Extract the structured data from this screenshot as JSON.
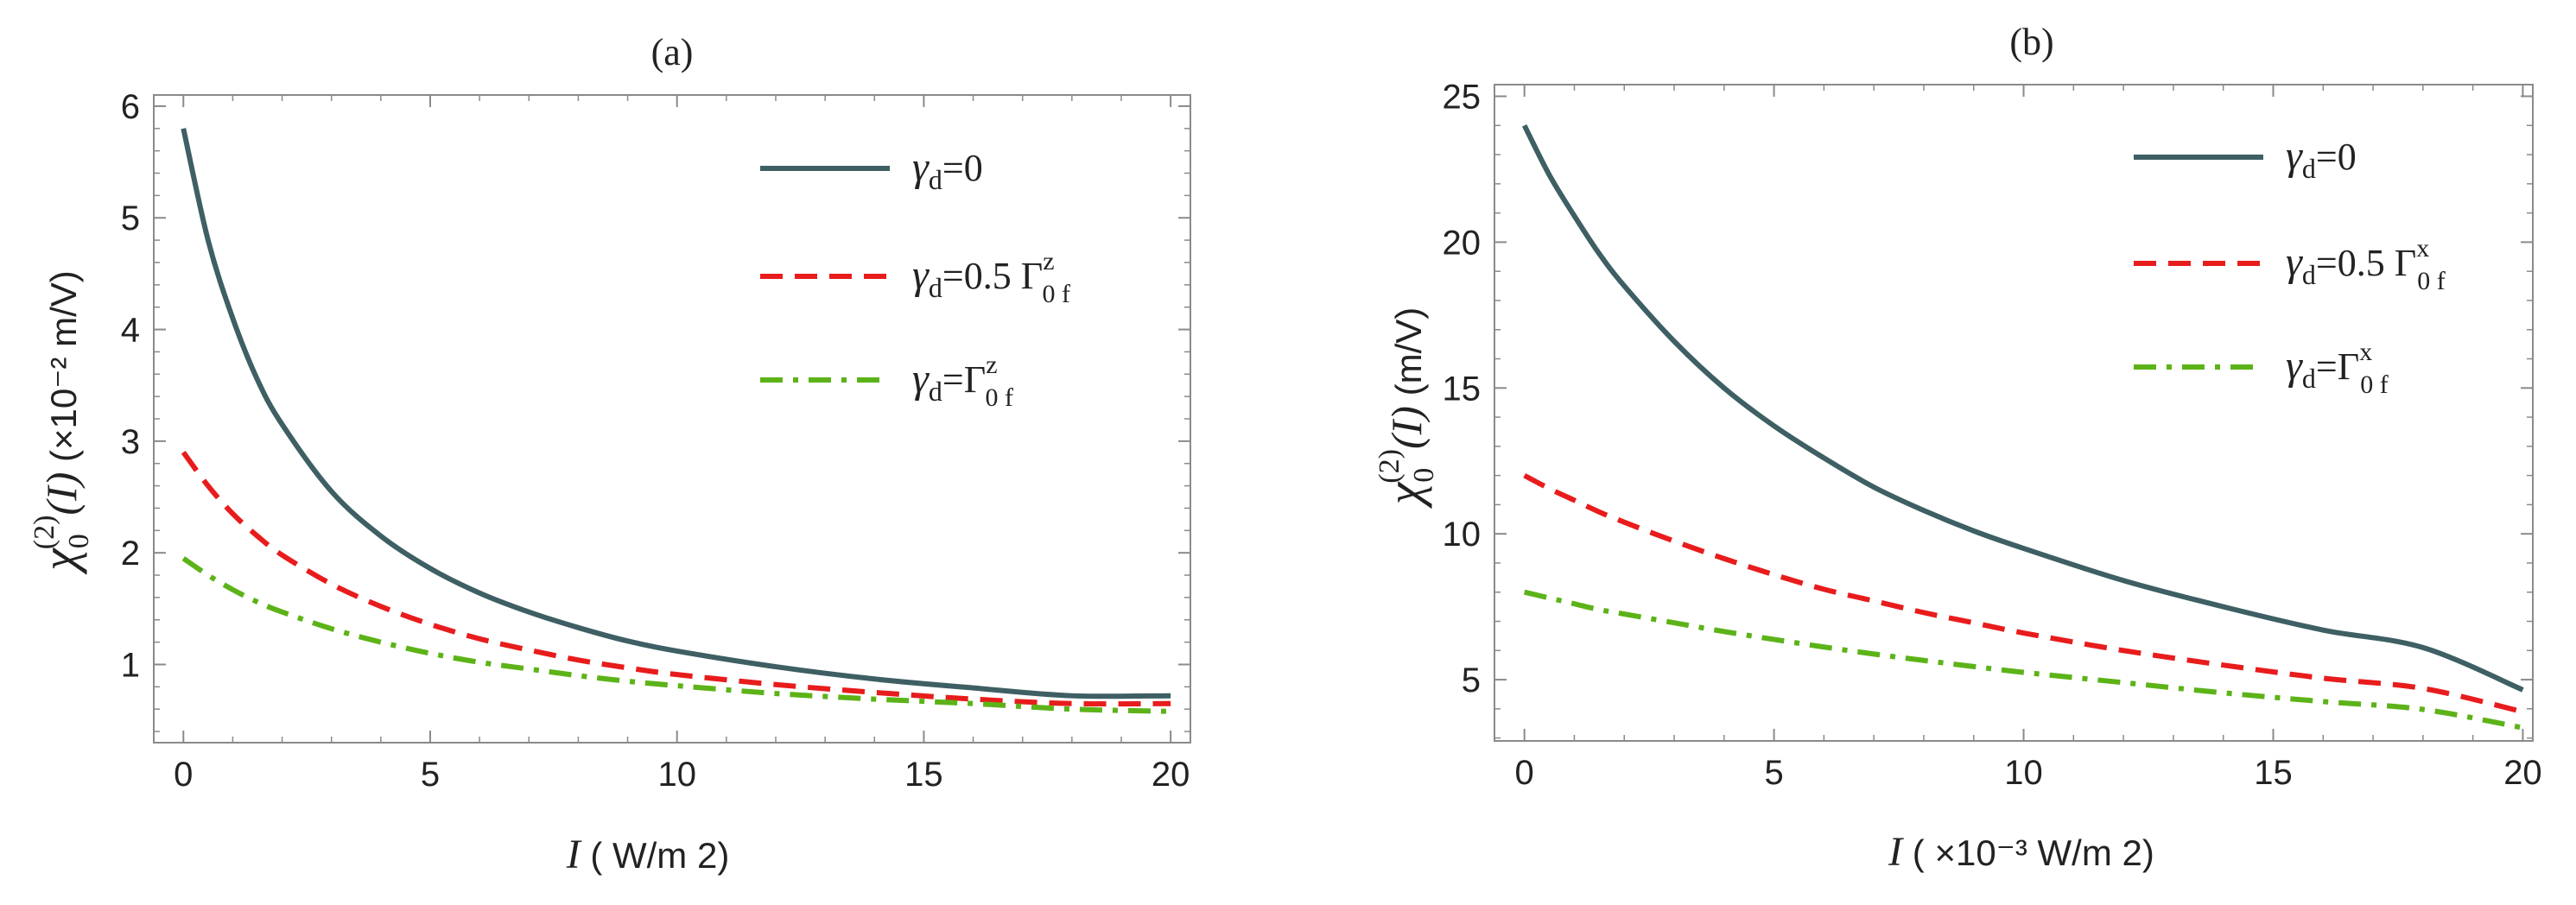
{
  "chart_data": [
    {
      "type": "line",
      "panel_label": "(a)",
      "xlabel": {
        "symbol": "I",
        "unit": "( W/m 2)"
      },
      "ylabel": {
        "symbol": "χ",
        "sub": "0",
        "sup": "(2)",
        "arg": "(I)",
        "unit": "(×10⁻² m/V)"
      },
      "xlim": [
        -0.6,
        20.4
      ],
      "ylim": [
        0.3,
        6.1
      ],
      "x_ticks": [
        0,
        5,
        10,
        15,
        20
      ],
      "x_tick_labels": [
        "0",
        "5",
        "10",
        "15",
        "20"
      ],
      "y_ticks": [
        1,
        2,
        3,
        4,
        5,
        6
      ],
      "y_tick_labels": [
        "1",
        "2",
        "3",
        "4",
        "5",
        "6"
      ],
      "legend_position": "top-right",
      "x": [
        0,
        0.5,
        1,
        1.5,
        2,
        3,
        4,
        5,
        6,
        7,
        8,
        9,
        10,
        12,
        14,
        16,
        18,
        20
      ],
      "series": [
        {
          "name": "γd=0",
          "legend_main": "γ",
          "legend_sub": "d",
          "legend_tail": "=0",
          "color": "#3e5f63",
          "style": "solid",
          "values": [
            5.8,
            4.8,
            4.1,
            3.55,
            3.15,
            2.55,
            2.15,
            1.86,
            1.64,
            1.47,
            1.33,
            1.21,
            1.12,
            0.98,
            0.87,
            0.79,
            0.72,
            0.72
          ]
        },
        {
          "name": "γd=0.5 Γz0f",
          "legend_main": "γ",
          "legend_sub": "d",
          "legend_tail": "=0.5 Γ",
          "legend_sup2": "z",
          "legend_sub2": "0 f",
          "color": "#e81c1c",
          "style": "dashed",
          "values": [
            2.9,
            2.6,
            2.35,
            2.15,
            1.98,
            1.72,
            1.52,
            1.36,
            1.23,
            1.13,
            1.04,
            0.97,
            0.91,
            0.82,
            0.75,
            0.69,
            0.65,
            0.65
          ]
        },
        {
          "name": "γd=Γz0f",
          "legend_main": "γ",
          "legend_sub": "d",
          "legend_tail": "=Γ",
          "legend_sup2": "z",
          "legend_sub2": "0 f",
          "color": "#5cb318",
          "style": "dashdot",
          "values": [
            1.95,
            1.8,
            1.67,
            1.56,
            1.47,
            1.32,
            1.2,
            1.1,
            1.02,
            0.96,
            0.9,
            0.85,
            0.81,
            0.74,
            0.69,
            0.65,
            0.6,
            0.58
          ]
        }
      ]
    },
    {
      "type": "line",
      "panel_label": "(b)",
      "xlabel": {
        "symbol": "I",
        "unit": "( ×10⁻³ W/m 2)"
      },
      "ylabel": {
        "symbol": "χ",
        "sub": "0",
        "sup": "(2)",
        "arg": "(I)",
        "unit": "(m/V)"
      },
      "xlim": [
        -0.6,
        20.2
      ],
      "ylim": [
        2.9,
        25.4
      ],
      "x_ticks": [
        0,
        5,
        10,
        15,
        20
      ],
      "x_tick_labels": [
        "0",
        "5",
        "10",
        "15",
        "20"
      ],
      "y_ticks": [
        5,
        10,
        15,
        20,
        25
      ],
      "y_tick_labels": [
        "5",
        "10",
        "15",
        "20",
        "25"
      ],
      "legend_position": "top-right",
      "x": [
        0,
        0.5,
        1,
        1.5,
        2,
        3,
        4,
        5,
        6,
        7,
        8,
        9,
        10,
        12,
        14,
        16,
        18,
        20
      ],
      "series": [
        {
          "name": "γd=0",
          "legend_main": "γ",
          "legend_sub": "d",
          "legend_tail": "=0",
          "color": "#3e5f63",
          "style": "solid",
          "values": [
            24.0,
            22.3,
            20.9,
            19.6,
            18.5,
            16.6,
            15.0,
            13.7,
            12.6,
            11.6,
            10.8,
            10.1,
            9.5,
            8.4,
            7.5,
            6.7,
            6.1,
            4.65
          ]
        },
        {
          "name": "γd=0.5 Γx0f",
          "legend_main": "γ",
          "legend_sub": "d",
          "legend_tail": "=0.5 Γ",
          "legend_sup2": "x",
          "legend_sub2": "0 f",
          "color": "#e81c1c",
          "style": "dashed",
          "values": [
            12.0,
            11.55,
            11.15,
            10.75,
            10.4,
            9.75,
            9.15,
            8.6,
            8.1,
            7.7,
            7.3,
            6.95,
            6.6,
            6.0,
            5.5,
            5.05,
            4.7,
            3.9
          ]
        },
        {
          "name": "γd=Γx0f",
          "legend_main": "γ",
          "legend_sub": "d",
          "legend_tail": "=Γ",
          "legend_sup2": "x",
          "legend_sub2": "0 f",
          "color": "#5cb318",
          "style": "dashdot",
          "values": [
            8.0,
            7.8,
            7.6,
            7.4,
            7.25,
            6.95,
            6.65,
            6.38,
            6.12,
            5.88,
            5.66,
            5.45,
            5.25,
            4.9,
            4.55,
            4.25,
            3.98,
            3.35
          ]
        }
      ]
    }
  ]
}
